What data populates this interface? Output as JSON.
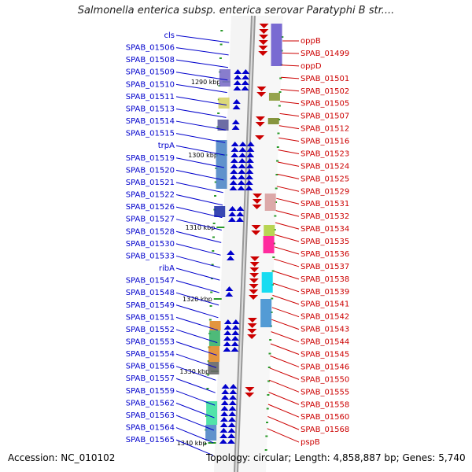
{
  "title": "Salmonella enterica subsp. enterica serovar Paratyphi B str....",
  "accession": "Accession: NC_010102",
  "topology": "Topology: circular; Length: 4,858,887 bp; Genes: 5,740",
  "ticks": [
    "1290 kbp",
    "1300 kbp",
    "1310 kbp",
    "1320 kbp",
    "1330 kbp",
    "1340 kbp"
  ],
  "left_labels": [
    "cls",
    "SPAB_01506",
    "SPAB_01508",
    "SPAB_01509",
    "SPAB_01510",
    "SPAB_01511",
    "SPAB_01513",
    "SPAB_01514",
    "SPAB_01515",
    "trpA",
    "SPAB_01519",
    "SPAB_01520",
    "SPAB_01521",
    "SPAB_01522",
    "SPAB_01526",
    "SPAB_01527",
    "SPAB_01528",
    "SPAB_01530",
    "SPAB_01533",
    "ribA",
    "SPAB_01547",
    "SPAB_01548",
    "SPAB_01549",
    "SPAB_01551",
    "SPAB_01552",
    "SPAB_01553",
    "SPAB_01554",
    "SPAB_01556",
    "SPAB_01557",
    "SPAB_01559",
    "SPAB_01562",
    "SPAB_01563",
    "SPAB_01564",
    "SPAB_01565"
  ],
  "right_labels": [
    "oppB",
    "SPAB_01499",
    "oppD",
    "SPAB_01501",
    "SPAB_01502",
    "SPAB_01505",
    "SPAB_01507",
    "SPAB_01512",
    "SPAB_01516",
    "SPAB_01523",
    "SPAB_01524",
    "SPAB_01525",
    "SPAB_01529",
    "SPAB_01531",
    "SPAB_01532",
    "SPAB_01534",
    "SPAB_01535",
    "SPAB_01536",
    "SPAB_01537",
    "SPAB_01538",
    "SPAB_01539",
    "SPAB_01541",
    "SPAB_01542",
    "SPAB_01543",
    "SPAB_01544",
    "SPAB_01545",
    "SPAB_01546",
    "SPAB_01550",
    "SPAB_01555",
    "SPAB_01558",
    "SPAB_01560",
    "SPAB_01568",
    "pspB"
  ],
  "colors": {
    "forward": "#0000cc",
    "reverse": "#cc0000",
    "backbone": "#aaaaaa",
    "tick": "#2a9a2a"
  }
}
